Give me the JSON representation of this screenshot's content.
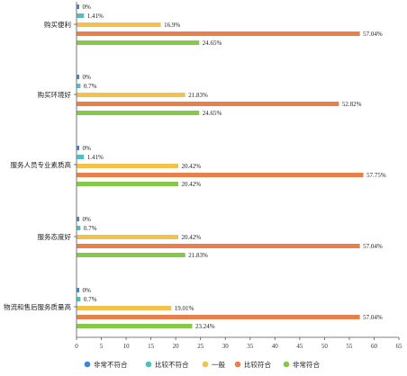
{
  "chart_data": {
    "type": "bar",
    "orientation": "horizontal",
    "categories": [
      "购买便利",
      "购买环境好",
      "服务人员专业素质高",
      "服务态度好",
      "物流和售后服务质量高"
    ],
    "series": [
      {
        "name": "非常不符合",
        "color": "#3b86d8",
        "values": [
          0,
          0,
          0,
          0,
          0
        ],
        "labels": [
          "0%",
          "0%",
          "0%",
          "0%",
          "0%"
        ]
      },
      {
        "name": "比较不符合",
        "color": "#4fc0c0",
        "values": [
          1.41,
          0.7,
          1.41,
          0.7,
          0.7
        ],
        "labels": [
          "1.41%",
          "0.7%",
          "1.41%",
          "0.7%",
          "0.7%"
        ]
      },
      {
        "name": "一般",
        "color": "#f2c14e",
        "values": [
          16.9,
          21.83,
          20.42,
          20.42,
          19.01
        ],
        "labels": [
          "16.9%",
          "21.83%",
          "20.42%",
          "20.42%",
          "19.01%"
        ]
      },
      {
        "name": "比较符合",
        "color": "#e8804b",
        "values": [
          57.04,
          52.82,
          57.75,
          57.04,
          57.04
        ],
        "labels": [
          "57.04%",
          "52.82%",
          "57.75%",
          "57.04%",
          "57.04%"
        ]
      },
      {
        "name": "非常符合",
        "color": "#86c94a",
        "values": [
          24.65,
          24.65,
          20.42,
          21.83,
          23.24
        ],
        "labels": [
          "24.65%",
          "24.65%",
          "20.42%",
          "21.83%",
          "23.24%"
        ]
      }
    ],
    "xlim": [
      0,
      65
    ],
    "xticks": [
      "0",
      "5",
      "10",
      "15",
      "20",
      "25",
      "30",
      "35",
      "40",
      "45",
      "50",
      "55",
      "60",
      "65"
    ],
    "grid": false,
    "legend_position": "bottom"
  }
}
